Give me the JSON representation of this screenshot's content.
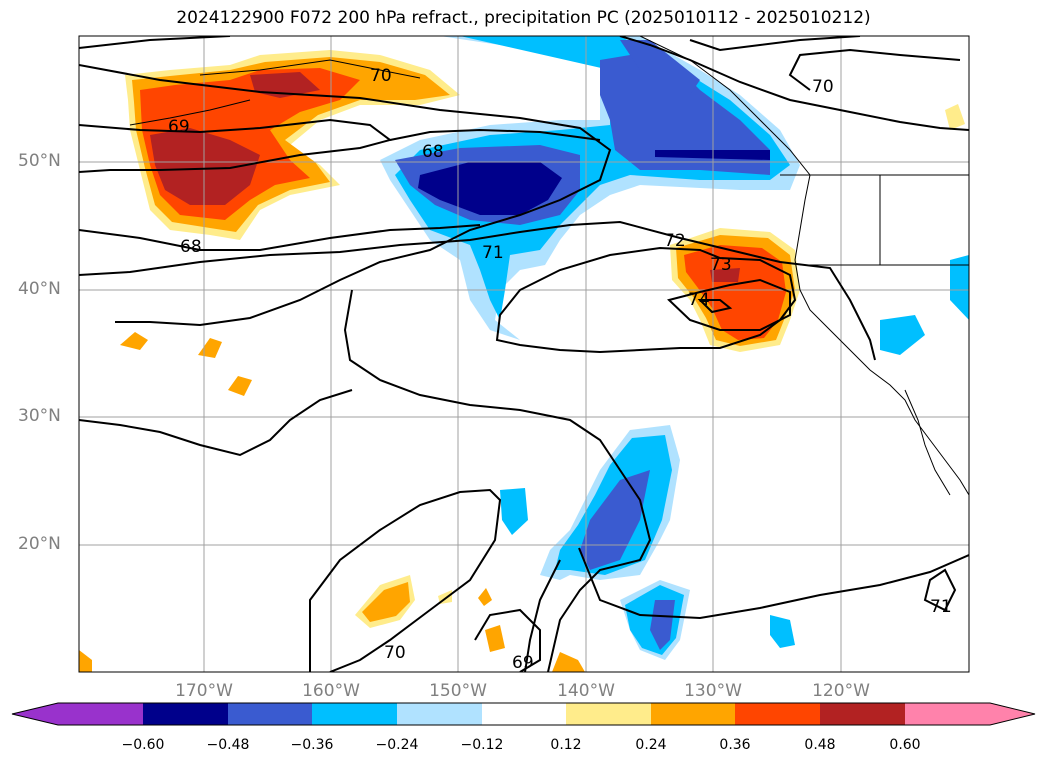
{
  "title": "2024122900 F072 200 hPa refract., precipitation PC (2025010112 - 2025010212)",
  "map": {
    "lat_labels": [
      "50°N",
      "40°N",
      "30°N",
      "20°N"
    ],
    "lon_labels": [
      "170°W",
      "160°W",
      "150°W",
      "140°W",
      "130°W",
      "120°W"
    ],
    "contour_labels": [
      "70",
      "69",
      "68",
      "68",
      "71",
      "72",
      "73",
      "74",
      "70",
      "70",
      "69",
      "71"
    ]
  },
  "colorbar": {
    "ticks": [
      "−0.60",
      "−0.48",
      "−0.36",
      "−0.24",
      "−0.12",
      "0.12",
      "0.24",
      "0.36",
      "0.48",
      "0.60"
    ],
    "colors": {
      "under": "#9932cc",
      "c1": "#00008b",
      "c2": "#3a5bd0",
      "c3": "#00bfff",
      "c4": "#b0e2ff",
      "c5": "#ffffff",
      "c6": "#ffec8b",
      "c7": "#ffa500",
      "c8": "#ff4500",
      "c9": "#b22222",
      "over": "#ff82ab"
    }
  }
}
